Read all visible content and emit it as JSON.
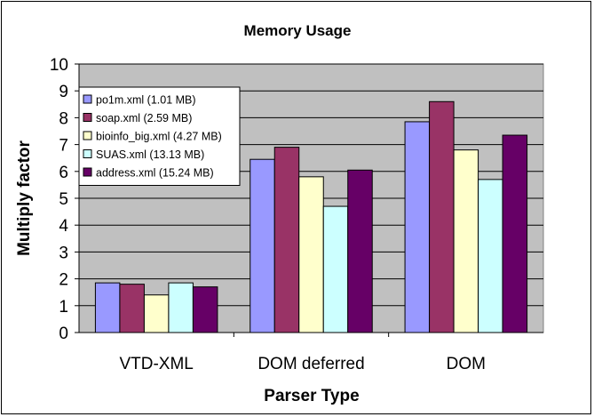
{
  "chart_data": {
    "type": "bar",
    "title": "Memory Usage",
    "xlabel": "Parser Type",
    "ylabel": "Multiply factor",
    "ylim": [
      0,
      10
    ],
    "yticks": [
      "0",
      "1",
      "2",
      "3",
      "4",
      "5",
      "6",
      "7",
      "8",
      "9",
      "10"
    ],
    "grid": true,
    "legend_position": "top-left",
    "categories": [
      "VTD-XML",
      "DOM deferred",
      "DOM"
    ],
    "series": [
      {
        "name": "po1m.xml (1.01 MB)",
        "color": "#9999FF",
        "values": [
          1.85,
          6.45,
          7.85
        ]
      },
      {
        "name": "soap.xml (2.59 MB)",
        "color": "#993366",
        "values": [
          1.8,
          6.9,
          8.6
        ]
      },
      {
        "name": "bioinfo_big.xml (4.27 MB)",
        "color": "#FFFFCC",
        "values": [
          1.4,
          5.8,
          6.8
        ]
      },
      {
        "name": "SUAS.xml (13.13 MB)",
        "color": "#CCFFFF",
        "values": [
          1.85,
          4.7,
          5.7
        ]
      },
      {
        "name": "address.xml (15.24 MB)",
        "color": "#660066",
        "values": [
          1.7,
          6.05,
          7.35
        ]
      }
    ],
    "plot_background": "#C0C0C0"
  }
}
